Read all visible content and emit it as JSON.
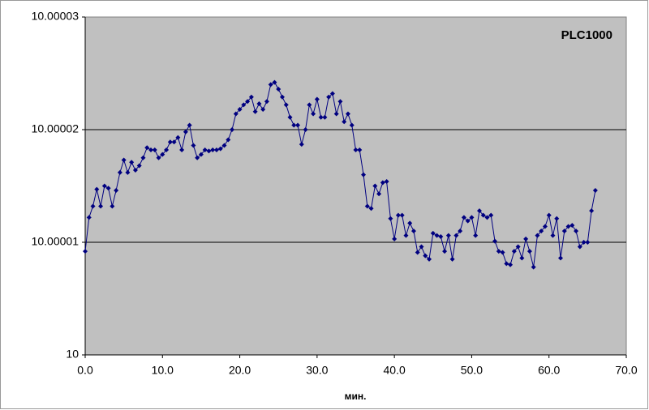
{
  "chart_data": {
    "type": "line",
    "title": "PLC1000",
    "x_label": "мин.",
    "x": [
      0,
      0.5,
      1,
      1.5,
      2,
      2.5,
      3,
      3.5,
      4,
      4.5,
      5,
      5.5,
      6,
      6.5,
      7,
      7.5,
      8,
      8.5,
      9,
      9.5,
      10,
      10.5,
      11,
      11.5,
      12,
      12.5,
      13,
      13.5,
      14,
      14.5,
      15,
      15.5,
      16,
      16.5,
      17,
      17.5,
      18,
      18.5,
      19,
      19.5,
      20,
      20.5,
      21,
      21.5,
      22,
      22.5,
      23,
      23.5,
      24,
      24.5,
      25,
      25.5,
      26,
      26.5,
      27,
      27.5,
      28,
      28.5,
      29,
      29.5,
      30,
      30.5,
      31,
      31.5,
      32,
      32.5,
      33,
      33.5,
      34,
      34.5,
      35,
      35.5,
      36,
      36.5,
      37,
      37.5,
      38,
      38.5,
      39,
      39.5,
      40,
      40.5,
      41,
      41.5,
      42,
      42.5,
      43,
      43.5,
      44,
      44.5,
      45,
      45.5,
      46,
      46.5,
      47,
      47.5,
      48,
      48.5,
      49,
      49.5,
      50,
      50.5,
      51,
      51.5,
      52,
      52.5,
      53,
      53.5,
      54,
      54.5,
      55,
      55.5,
      56,
      56.5,
      57,
      57.5,
      58,
      58.5,
      59,
      59.5,
      60,
      60.5,
      61,
      61.5,
      62,
      62.5,
      63,
      63.5,
      64,
      64.5,
      65,
      65.5,
      66
    ],
    "series": [
      {
        "color": "#000080",
        "values": [
          10.0000092,
          10.0000122,
          10.0000132,
          10.0000147,
          10.0000132,
          10.000015,
          10.0000148,
          10.0000132,
          10.0000146,
          10.0000162,
          10.0000173,
          10.0000162,
          10.0000171,
          10.0000164,
          10.0000168,
          10.0000175,
          10.0000184,
          10.0000182,
          10.0000182,
          10.0000175,
          10.0000178,
          10.0000182,
          10.0000189,
          10.0000189,
          10.0000193,
          10.0000182,
          10.0000198,
          10.0000204,
          10.0000186,
          10.0000175,
          10.0000178,
          10.0000182,
          10.0000181,
          10.0000182,
          10.0000182,
          10.0000183,
          10.0000186,
          10.0000191,
          10.00002,
          10.0000214,
          10.0000218,
          10.0000222,
          10.0000225,
          10.0000229,
          10.0000216,
          10.0000223,
          10.0000218,
          10.0000225,
          10.000024,
          10.0000242,
          10.0000236,
          10.0000229,
          10.0000222,
          10.0000211,
          10.0000204,
          10.0000204,
          10.0000187,
          10.00002,
          10.0000222,
          10.0000214,
          10.0000227,
          10.0000211,
          10.0000211,
          10.0000229,
          10.0000232,
          10.0000214,
          10.0000225,
          10.0000207,
          10.0000214,
          10.0000204,
          10.0000182,
          10.0000182,
          10.000016,
          10.0000132,
          10.000013,
          10.000015,
          10.0000143,
          10.0000153,
          10.0000154,
          10.0000121,
          10.0000103,
          10.0000124,
          10.0000124,
          10.0000106,
          10.0000117,
          10.000011,
          10.0000091,
          10.0000096,
          10.0000088,
          10.0000085,
          10.0000108,
          10.0000106,
          10.0000105,
          10.0000092,
          10.0000106,
          10.0000085,
          10.0000106,
          10.000011,
          10.0000122,
          10.0000119,
          10.0000122,
          10.0000106,
          10.0000128,
          10.0000124,
          10.0000122,
          10.0000124,
          10.0000101,
          10.0000092,
          10.0000091,
          10.0000081,
          10.000008,
          10.0000092,
          10.0000096,
          10.0000086,
          10.0000103,
          10.0000092,
          10.0000078,
          10.0000106,
          10.000011,
          10.0000114,
          10.0000124,
          10.0000106,
          10.0000121,
          10.0000086,
          10.000011,
          10.0000114,
          10.0000115,
          10.000011,
          10.0000096,
          10.00001,
          10.00001,
          10.0000128,
          10.0000146
        ]
      }
    ],
    "xlim": [
      0,
      70
    ],
    "xticks": [
      {
        "value": 0,
        "label": "0.0"
      },
      {
        "value": 10,
        "label": "10.0"
      },
      {
        "value": 20,
        "label": "20.0"
      },
      {
        "value": 30,
        "label": "30.0"
      },
      {
        "value": 40,
        "label": "40.0"
      },
      {
        "value": 50,
        "label": "50.0"
      },
      {
        "value": 60,
        "label": "60.0"
      },
      {
        "value": 70,
        "label": "70.0"
      }
    ],
    "ylim": [
      10,
      10.00003
    ],
    "yticks": [
      10,
      10.00001,
      10.00002,
      10.00003
    ],
    "grid": true
  }
}
